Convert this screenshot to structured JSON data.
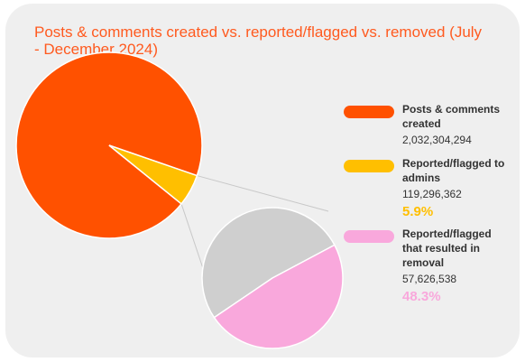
{
  "colors": {
    "posts": "#ff5100",
    "flagged": "#ffbf00",
    "removed": "#f9a8dc",
    "not_removed": "#cfcfcf",
    "connector": "#c8c8c8",
    "title": "#ff5a1f"
  },
  "chart_data": {
    "type": "pie",
    "title": "Posts & comments created vs. reported/flagged vs. removed  (July - December 2024)",
    "series": [
      {
        "name": "Posts & comments created",
        "labels": [
          "Posts & comments created",
          "Reported/flagged to admins"
        ],
        "values": [
          2032304294,
          119296362
        ],
        "colors": [
          "#ff5100",
          "#ffbf00"
        ]
      },
      {
        "name": "Reported/flagged to admins",
        "labels": [
          "Reported/flagged that resulted in removal",
          ""
        ],
        "values": [
          57626538,
          61669824
        ],
        "colors": [
          "#f9a8dc",
          "#cfcfcf"
        ]
      }
    ],
    "legend": "right"
  },
  "legend": [
    {
      "key": "posts",
      "name": "Posts & comments created",
      "value": "2,032,304,294",
      "pct": ""
    },
    {
      "key": "flagged",
      "name": "Reported/flagged to admins",
      "value": "119,296,362",
      "pct": "5.9%"
    },
    {
      "key": "removed",
      "name": "Reported/flagged that resulted in removal",
      "value": "57,626,538",
      "pct": "48.3%"
    }
  ]
}
